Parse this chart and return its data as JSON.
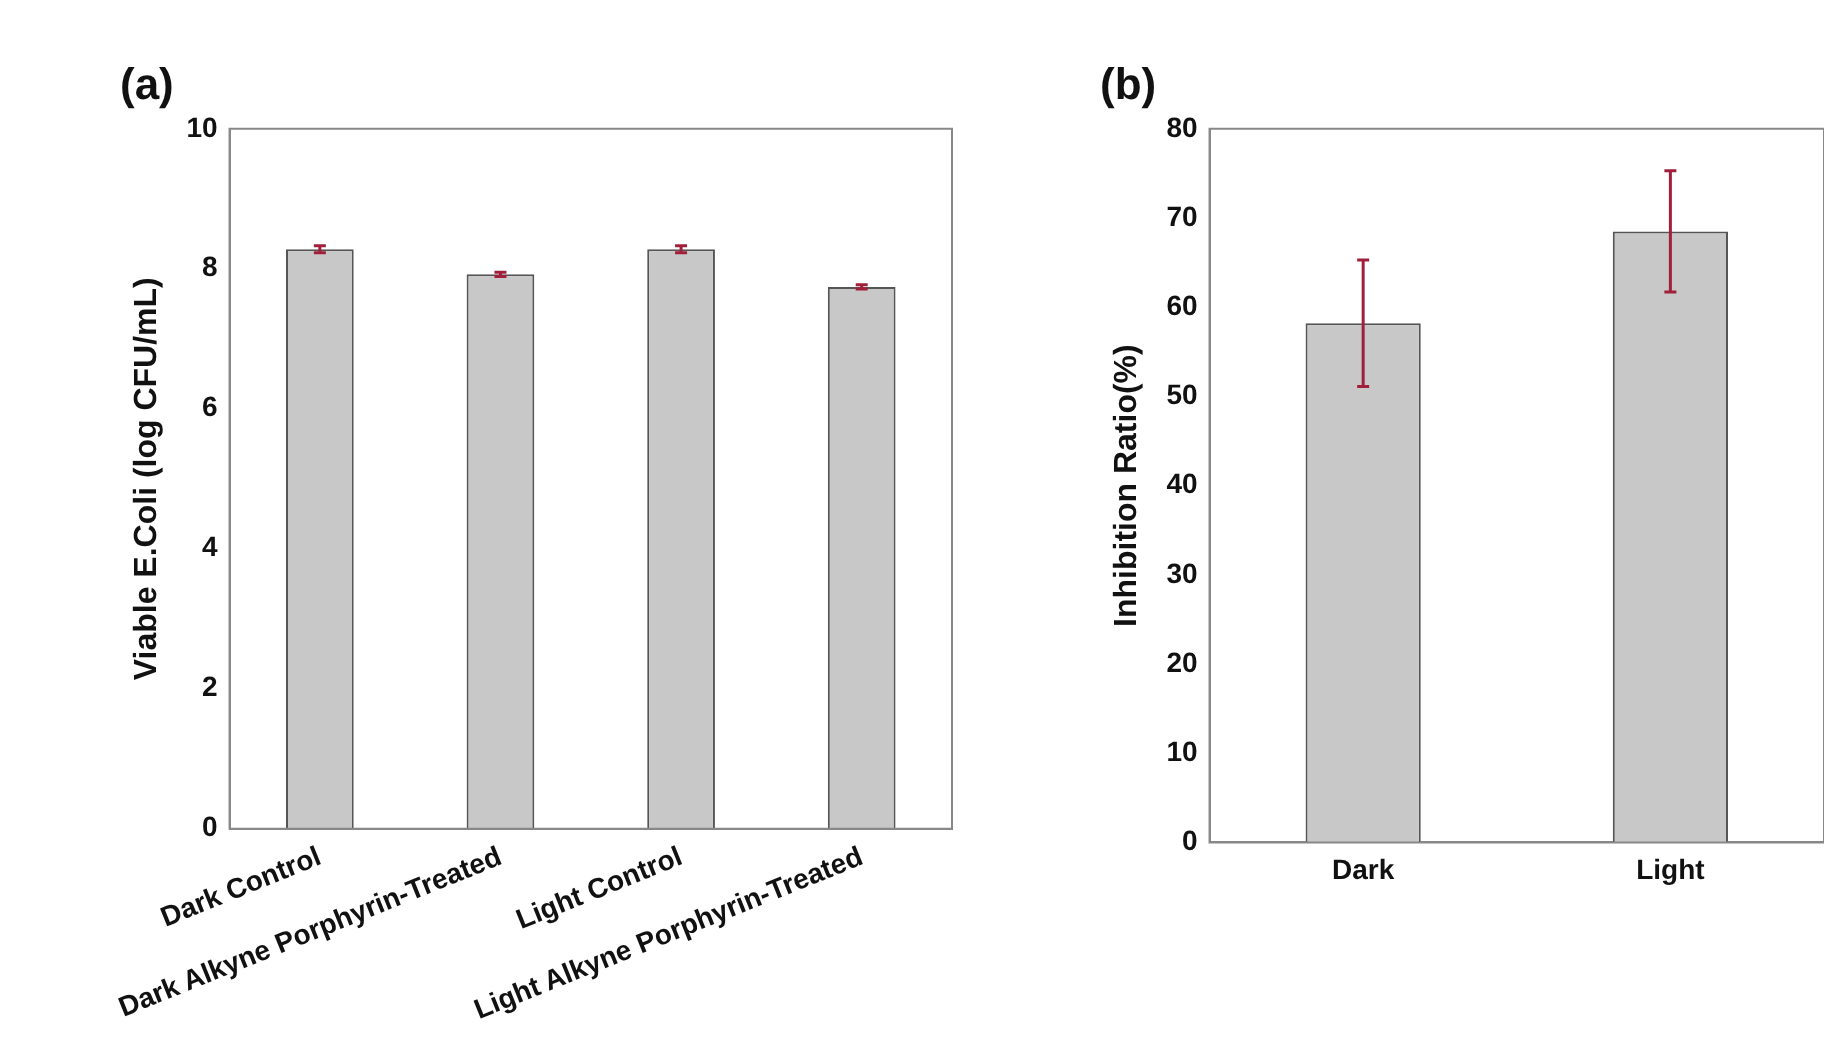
{
  "chart_data": [
    {
      "type": "bar",
      "title": "(a)",
      "ylabel": "Viable E.Coli (log CFU/mL)",
      "categories": [
        "Dark Control",
        "Dark Alkyne Porphyrin-Treated",
        "Light Control",
        "Light Alkyne Porphyrin-Treated"
      ],
      "values": [
        8.28,
        7.92,
        8.28,
        7.74
      ],
      "errors": [
        0.05,
        0.03,
        0.05,
        0.03
      ],
      "color": "#c8c8c8",
      "ylim": [
        0,
        10
      ],
      "yticks": [
        0,
        2,
        4,
        6,
        8,
        10
      ],
      "legend": false
    },
    {
      "type": "bar",
      "title": "(b)",
      "ylabel": "Inhibition Ratio(%)",
      "categories": [
        "Dark",
        "Light"
      ],
      "values": [
        58.2,
        68.5
      ],
      "errors": [
        7.1,
        6.8
      ],
      "color": "#c8c8c8",
      "ylim": [
        0,
        80
      ],
      "yticks": [
        0,
        10,
        20,
        30,
        40,
        50,
        60,
        70,
        80
      ],
      "legend": false
    }
  ]
}
